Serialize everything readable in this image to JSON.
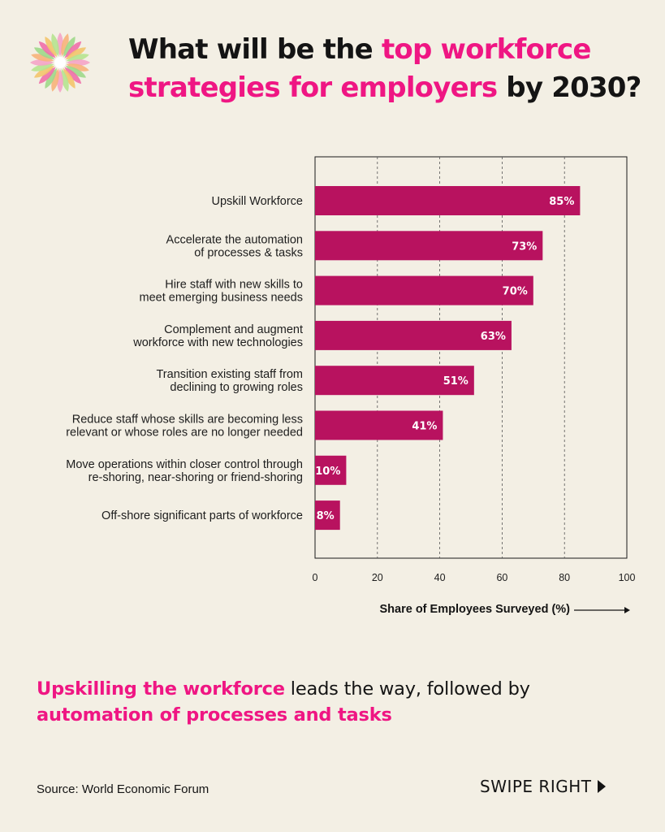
{
  "header": {
    "logo_icon": "flower-burst-icon",
    "title_part1": "What will be the ",
    "title_highlight": "top workforce strategies for employers",
    "title_part2": " by 2030?"
  },
  "chart_data": {
    "type": "bar",
    "orientation": "horizontal",
    "categories": [
      "Upskill Workforce",
      "Accelerate the automation of processes & tasks",
      "Hire staff with new skills to meet emerging business needs",
      "Complement and augment workforce with new technologies",
      "Transition existing staff from declining to growing roles",
      "Reduce staff whose skills are becoming less relevant or whose roles are no longer needed",
      "Move operations within closer control through re-shoring, near-shoring or friend-shoring",
      "Off-shore significant parts of workforce"
    ],
    "category_lines": [
      [
        "Upskill Workforce"
      ],
      [
        "Accelerate the automation",
        "of processes & tasks"
      ],
      [
        "Hire staff with new skills to",
        "meet emerging business needs"
      ],
      [
        "Complement and augment",
        "workforce with new technologies"
      ],
      [
        "Transition existing staff from",
        "declining to growing roles"
      ],
      [
        "Reduce staff whose skills are becoming less",
        "relevant or whose roles are no longer needed"
      ],
      [
        "Move operations within closer control through",
        "re-shoring, near-shoring or friend-shoring"
      ],
      [
        "Off-shore significant parts of workforce"
      ]
    ],
    "values": [
      85,
      73,
      70,
      63,
      51,
      41,
      10,
      8
    ],
    "value_labels": [
      "85%",
      "73%",
      "70%",
      "63%",
      "51%",
      "41%",
      "10%",
      "8%"
    ],
    "xlabel": "Share of Employees Surveyed (%)",
    "xlim": [
      0,
      100
    ],
    "xticks": [
      0,
      20,
      40,
      60,
      80,
      100
    ],
    "grid": "vertical dashed",
    "bar_color": "#b8125f"
  },
  "takeaway": {
    "highlight1": "Upskilling the workforce",
    "text1": " leads the way, followed by",
    "highlight2": "automation of processes and tasks"
  },
  "footer": {
    "source": "Source: World Economic Forum",
    "swipe_label": "SWIPE RIGHT",
    "swipe_icon": "play-arrow-icon"
  },
  "colors": {
    "background": "#f3efe4",
    "accent": "#ef1683",
    "bar": "#b8125f",
    "text": "#141414"
  }
}
